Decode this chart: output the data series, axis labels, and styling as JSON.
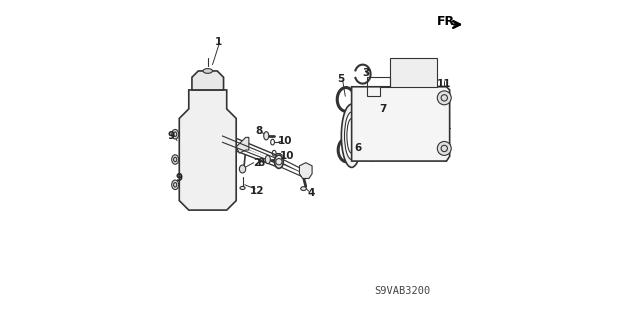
{
  "bg_color": "#ffffff",
  "line_color": "#333333",
  "label_color": "#222222",
  "fr_text": "FR.",
  "part_number": "S9VAB3200",
  "figsize": [
    6.4,
    3.19
  ],
  "dpi": 100
}
